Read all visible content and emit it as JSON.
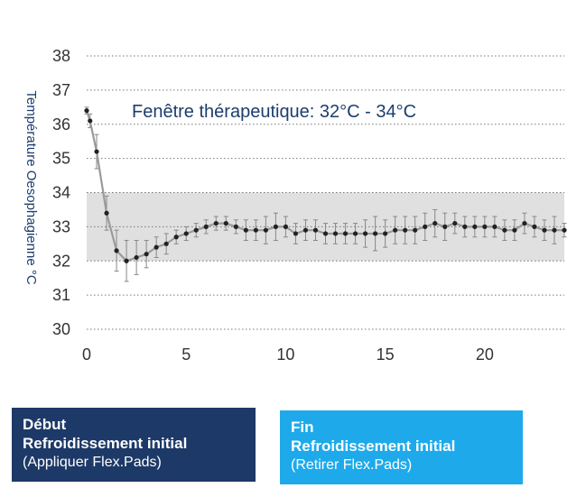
{
  "chart_data": {
    "type": "line",
    "ylabel": "Température Oesophagienne °C",
    "xlabel": "",
    "title": "",
    "xlim": [
      0,
      24
    ],
    "ylim": [
      30,
      38
    ],
    "xticks": [
      0,
      5,
      10,
      15,
      20
    ],
    "yticks": [
      30,
      31,
      32,
      33,
      34,
      35,
      36,
      37,
      38
    ],
    "grid": "horizontal dotted",
    "band": {
      "from": 32,
      "to": 34,
      "label": "Fenêtre thérapeutique: 32°C - 34°C"
    },
    "series": [
      {
        "x": [
          0,
          0.17,
          0.5,
          1,
          1.5,
          2,
          2.5,
          3,
          3.5,
          4,
          4.5,
          5,
          5.5,
          6,
          6.5,
          7,
          7.5,
          8,
          8.5,
          9,
          9.5,
          10,
          10.5,
          11,
          11.5,
          12,
          12.5,
          13,
          13.5,
          14,
          14.5,
          15,
          15.5,
          16,
          16.5,
          17,
          17.5,
          18,
          18.5,
          19,
          19.5,
          20,
          20.5,
          21,
          21.5,
          22,
          22.5,
          23,
          23.5,
          24
        ],
        "y": [
          36.4,
          36.1,
          35.2,
          33.4,
          32.3,
          32.0,
          32.1,
          32.2,
          32.4,
          32.5,
          32.7,
          32.8,
          32.9,
          33.0,
          33.1,
          33.1,
          33.0,
          32.9,
          32.9,
          32.9,
          33.0,
          33.0,
          32.8,
          32.9,
          32.9,
          32.8,
          32.8,
          32.8,
          32.8,
          32.8,
          32.8,
          32.8,
          32.9,
          32.9,
          32.9,
          33.0,
          33.1,
          33.0,
          33.1,
          33.0,
          33.0,
          33.0,
          33.0,
          32.9,
          32.9,
          33.1,
          33.0,
          32.9,
          32.9,
          32.9
        ],
        "error": [
          0.1,
          0.2,
          0.5,
          0.5,
          0.6,
          0.6,
          0.5,
          0.4,
          0.3,
          0.3,
          0.2,
          0.2,
          0.2,
          0.2,
          0.2,
          0.2,
          0.2,
          0.3,
          0.3,
          0.4,
          0.4,
          0.3,
          0.3,
          0.3,
          0.3,
          0.3,
          0.3,
          0.3,
          0.3,
          0.4,
          0.5,
          0.4,
          0.4,
          0.4,
          0.4,
          0.4,
          0.4,
          0.4,
          0.3,
          0.3,
          0.3,
          0.3,
          0.3,
          0.3,
          0.3,
          0.3,
          0.3,
          0.3,
          0.4,
          0.2
        ],
        "color": "#222222",
        "line_color": "#9a9a9a"
      }
    ]
  },
  "boxes": {
    "start": {
      "line1": "Début",
      "line2": "Refroidissement initial",
      "line3": "(Appliquer Flex.Pads)",
      "color": "#1d3967"
    },
    "end": {
      "line1": "Fin",
      "line2": "Refroidissement initial",
      "line3": "(Retirer Flex.Pads)",
      "color": "#1eaaea"
    }
  },
  "colors": {
    "band": "#e0e0e0",
    "grid": "#777777",
    "text": "#1c3d6e"
  }
}
